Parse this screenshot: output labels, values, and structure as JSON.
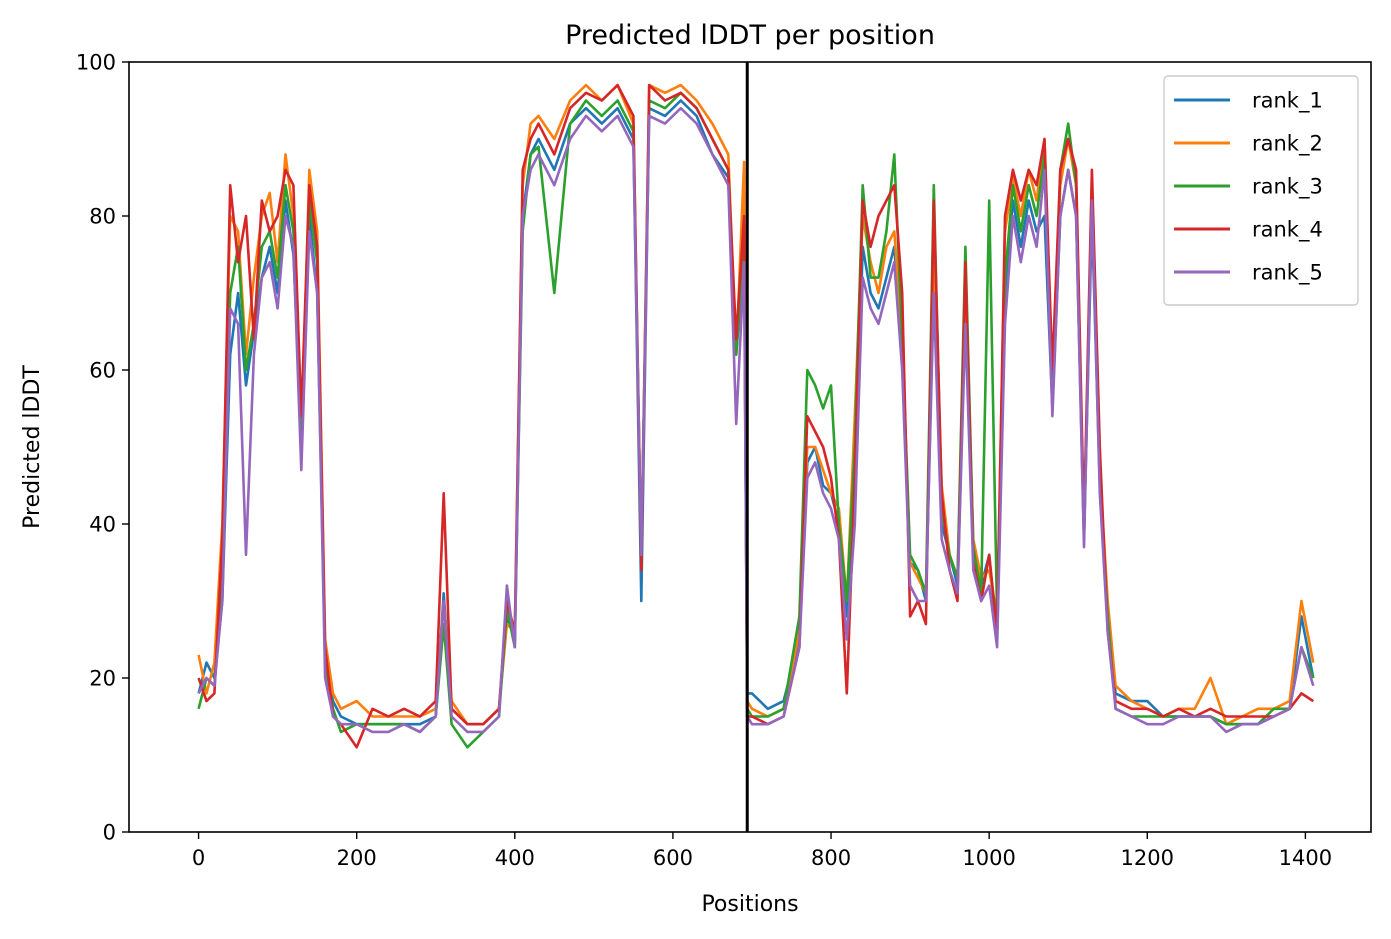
{
  "chart_data": {
    "type": "line",
    "title": "Predicted lDDT per position",
    "xlabel": "Positions",
    "ylabel": "Predicted lDDT",
    "xlim": [
      -88,
      1483
    ],
    "ylim": [
      0,
      100
    ],
    "xticks": [
      0,
      200,
      400,
      600,
      800,
      1000,
      1200,
      1400
    ],
    "yticks": [
      0,
      20,
      40,
      60,
      80,
      100
    ],
    "grid": false,
    "legend_position": "top-right",
    "chain_break_x": 694,
    "series": [
      {
        "name": "rank_1",
        "color": "#1f77b4",
        "x": [
          0,
          10,
          20,
          30,
          40,
          50,
          60,
          70,
          80,
          90,
          100,
          110,
          120,
          130,
          140,
          150,
          160,
          170,
          180,
          200,
          220,
          240,
          260,
          280,
          300,
          310,
          320,
          340,
          360,
          380,
          390,
          400,
          410,
          420,
          430,
          450,
          470,
          490,
          510,
          530,
          550,
          560,
          570,
          590,
          610,
          630,
          650,
          670,
          680,
          690,
          694,
          700,
          720,
          740,
          760,
          770,
          780,
          790,
          800,
          810,
          820,
          830,
          840,
          850,
          860,
          870,
          880,
          890,
          900,
          910,
          920,
          930,
          940,
          950,
          960,
          970,
          980,
          990,
          1000,
          1010,
          1020,
          1030,
          1040,
          1050,
          1060,
          1070,
          1080,
          1090,
          1100,
          1110,
          1120,
          1130,
          1140,
          1150,
          1160,
          1180,
          1200,
          1220,
          1240,
          1260,
          1280,
          1300,
          1320,
          1340,
          1360,
          1380,
          1395,
          1410
        ],
        "y": [
          18,
          22,
          20,
          30,
          62,
          70,
          58,
          65,
          72,
          76,
          70,
          82,
          75,
          52,
          80,
          70,
          22,
          17,
          15,
          14,
          14,
          14,
          14,
          14,
          15,
          31,
          16,
          14,
          14,
          16,
          28,
          25,
          80,
          88,
          90,
          86,
          92,
          94,
          92,
          94,
          90,
          30,
          94,
          93,
          95,
          93,
          88,
          85,
          62,
          75,
          18,
          18,
          16,
          17,
          25,
          48,
          50,
          45,
          44,
          40,
          28,
          42,
          76,
          70,
          68,
          72,
          76,
          62,
          35,
          34,
          30,
          72,
          40,
          36,
          32,
          68,
          36,
          32,
          36,
          25,
          70,
          82,
          76,
          82,
          78,
          80,
          55,
          80,
          86,
          80,
          38,
          80,
          45,
          28,
          18,
          17,
          17,
          15,
          15,
          15,
          15,
          14,
          14,
          14,
          15,
          16,
          28,
          20
        ]
      },
      {
        "name": "rank_2",
        "color": "#ff7f0e",
        "x": [
          0,
          10,
          20,
          30,
          40,
          50,
          60,
          70,
          80,
          90,
          100,
          110,
          120,
          130,
          140,
          150,
          160,
          170,
          180,
          200,
          220,
          240,
          260,
          280,
          300,
          310,
          320,
          340,
          360,
          380,
          390,
          400,
          410,
          420,
          430,
          450,
          470,
          490,
          510,
          530,
          550,
          560,
          570,
          590,
          610,
          630,
          650,
          670,
          680,
          690,
          694,
          700,
          720,
          740,
          760,
          770,
          780,
          790,
          800,
          810,
          820,
          830,
          840,
          850,
          860,
          870,
          880,
          890,
          900,
          910,
          920,
          930,
          940,
          950,
          960,
          970,
          980,
          990,
          1000,
          1010,
          1020,
          1030,
          1040,
          1050,
          1060,
          1070,
          1080,
          1090,
          1100,
          1110,
          1120,
          1130,
          1140,
          1150,
          1160,
          1180,
          1200,
          1220,
          1240,
          1260,
          1280,
          1300,
          1320,
          1340,
          1360,
          1380,
          1395,
          1410
        ],
        "y": [
          23,
          18,
          22,
          40,
          80,
          78,
          62,
          72,
          80,
          83,
          74,
          88,
          80,
          50,
          86,
          78,
          25,
          18,
          16,
          17,
          15,
          15,
          15,
          15,
          16,
          30,
          17,
          14,
          14,
          16,
          27,
          26,
          84,
          92,
          93,
          90,
          95,
          97,
          95,
          97,
          92,
          36,
          97,
          96,
          97,
          95,
          92,
          88,
          62,
          87,
          17,
          16,
          15,
          16,
          26,
          50,
          50,
          47,
          44,
          42,
          30,
          54,
          80,
          74,
          70,
          76,
          78,
          64,
          35,
          33,
          31,
          74,
          45,
          36,
          33,
          70,
          38,
          33,
          34,
          28,
          78,
          85,
          80,
          86,
          82,
          90,
          58,
          84,
          90,
          84,
          38,
          85,
          47,
          30,
          19,
          17,
          16,
          15,
          16,
          16,
          20,
          14,
          15,
          16,
          16,
          17,
          30,
          22
        ]
      },
      {
        "name": "rank_3",
        "color": "#2ca02c",
        "x": [
          0,
          10,
          20,
          30,
          40,
          50,
          60,
          70,
          80,
          90,
          100,
          110,
          120,
          130,
          140,
          150,
          160,
          170,
          180,
          200,
          220,
          240,
          260,
          280,
          300,
          310,
          320,
          340,
          360,
          380,
          390,
          400,
          410,
          420,
          430,
          450,
          470,
          490,
          510,
          530,
          550,
          560,
          570,
          590,
          610,
          630,
          650,
          670,
          680,
          690,
          694,
          700,
          720,
          740,
          760,
          770,
          780,
          790,
          800,
          810,
          820,
          830,
          840,
          850,
          860,
          870,
          880,
          890,
          900,
          910,
          920,
          930,
          940,
          950,
          960,
          970,
          980,
          990,
          1000,
          1010,
          1020,
          1030,
          1040,
          1050,
          1060,
          1070,
          1080,
          1090,
          1100,
          1110,
          1120,
          1130,
          1140,
          1150,
          1160,
          1180,
          1200,
          1220,
          1240,
          1260,
          1280,
          1300,
          1320,
          1340,
          1360,
          1380,
          1395,
          1410
        ],
        "y": [
          16,
          20,
          19,
          32,
          70,
          76,
          60,
          66,
          76,
          78,
          72,
          84,
          78,
          50,
          82,
          74,
          22,
          16,
          13,
          14,
          14,
          14,
          14,
          13,
          15,
          27,
          14,
          11,
          13,
          15,
          29,
          24,
          78,
          88,
          89,
          70,
          92,
          95,
          93,
          95,
          91,
          35,
          95,
          94,
          96,
          94,
          90,
          86,
          62,
          78,
          16,
          15,
          15,
          16,
          28,
          60,
          58,
          55,
          58,
          40,
          30,
          50,
          84,
          72,
          72,
          78,
          88,
          64,
          36,
          34,
          31,
          84,
          42,
          36,
          33,
          76,
          37,
          31,
          82,
          28,
          72,
          84,
          78,
          84,
          80,
          88,
          56,
          86,
          92,
          84,
          38,
          84,
          46,
          28,
          16,
          15,
          15,
          15,
          15,
          15,
          15,
          14,
          14,
          14,
          16,
          16,
          24,
          20
        ]
      },
      {
        "name": "rank_4",
        "color": "#d62728",
        "x": [
          0,
          10,
          20,
          30,
          40,
          50,
          60,
          70,
          80,
          90,
          100,
          110,
          120,
          130,
          140,
          150,
          160,
          170,
          180,
          200,
          220,
          240,
          260,
          280,
          300,
          310,
          320,
          340,
          360,
          380,
          390,
          400,
          410,
          420,
          430,
          450,
          470,
          490,
          510,
          530,
          550,
          560,
          570,
          590,
          610,
          630,
          650,
          670,
          680,
          690,
          694,
          700,
          720,
          740,
          760,
          770,
          780,
          790,
          800,
          810,
          820,
          830,
          840,
          850,
          860,
          870,
          880,
          890,
          900,
          910,
          920,
          930,
          940,
          950,
          960,
          970,
          980,
          990,
          1000,
          1010,
          1020,
          1030,
          1040,
          1050,
          1060,
          1070,
          1080,
          1090,
          1100,
          1110,
          1120,
          1130,
          1140,
          1150,
          1160,
          1180,
          1200,
          1220,
          1240,
          1260,
          1280,
          1300,
          1320,
          1340,
          1360,
          1380,
          1395,
          1410
        ],
        "y": [
          20,
          17,
          18,
          38,
          84,
          74,
          80,
          64,
          82,
          78,
          80,
          86,
          84,
          54,
          84,
          76,
          24,
          15,
          14,
          11,
          16,
          15,
          16,
          15,
          17,
          44,
          16,
          14,
          14,
          16,
          30,
          26,
          86,
          90,
          92,
          88,
          94,
          96,
          95,
          97,
          93,
          34,
          97,
          95,
          96,
          94,
          90,
          86,
          64,
          80,
          15,
          15,
          14,
          15,
          24,
          54,
          52,
          50,
          46,
          38,
          18,
          46,
          82,
          76,
          80,
          82,
          84,
          70,
          28,
          30,
          27,
          82,
          44,
          34,
          30,
          74,
          35,
          30,
          36,
          26,
          80,
          86,
          82,
          86,
          84,
          90,
          60,
          86,
          90,
          86,
          40,
          86,
          50,
          26,
          17,
          16,
          16,
          15,
          16,
          15,
          16,
          15,
          15,
          15,
          15,
          16,
          18,
          17
        ]
      },
      {
        "name": "rank_5",
        "color": "#9467bd",
        "x": [
          0,
          10,
          20,
          30,
          40,
          50,
          60,
          70,
          80,
          90,
          100,
          110,
          120,
          130,
          140,
          150,
          160,
          170,
          180,
          200,
          220,
          240,
          260,
          280,
          300,
          310,
          320,
          340,
          360,
          380,
          390,
          400,
          410,
          420,
          430,
          450,
          470,
          490,
          510,
          530,
          550,
          560,
          570,
          590,
          610,
          630,
          650,
          670,
          680,
          690,
          694,
          700,
          720,
          740,
          760,
          770,
          780,
          790,
          800,
          810,
          820,
          830,
          840,
          850,
          860,
          870,
          880,
          890,
          900,
          910,
          920,
          930,
          940,
          950,
          960,
          970,
          980,
          990,
          1000,
          1010,
          1020,
          1030,
          1040,
          1050,
          1060,
          1070,
          1080,
          1090,
          1100,
          1110,
          1120,
          1130,
          1140,
          1150,
          1160,
          1180,
          1200,
          1220,
          1240,
          1260,
          1280,
          1300,
          1320,
          1340,
          1360,
          1380,
          1395,
          1410
        ],
        "y": [
          18,
          20,
          19,
          30,
          68,
          66,
          36,
          62,
          72,
          74,
          68,
          80,
          76,
          47,
          78,
          70,
          20,
          15,
          14,
          14,
          13,
          13,
          14,
          13,
          15,
          30,
          15,
          13,
          13,
          15,
          32,
          24,
          80,
          86,
          88,
          84,
          90,
          93,
          91,
          93,
          89,
          36,
          93,
          92,
          94,
          92,
          88,
          84,
          53,
          74,
          15,
          14,
          14,
          15,
          24,
          46,
          48,
          44,
          42,
          38,
          25,
          40,
          72,
          68,
          66,
          70,
          74,
          60,
          32,
          30,
          30,
          70,
          38,
          34,
          31,
          66,
          34,
          30,
          32,
          24,
          66,
          80,
          74,
          80,
          76,
          86,
          54,
          80,
          86,
          80,
          37,
          82,
          44,
          26,
          16,
          15,
          14,
          14,
          15,
          15,
          15,
          13,
          14,
          14,
          15,
          16,
          24,
          19
        ]
      }
    ]
  }
}
